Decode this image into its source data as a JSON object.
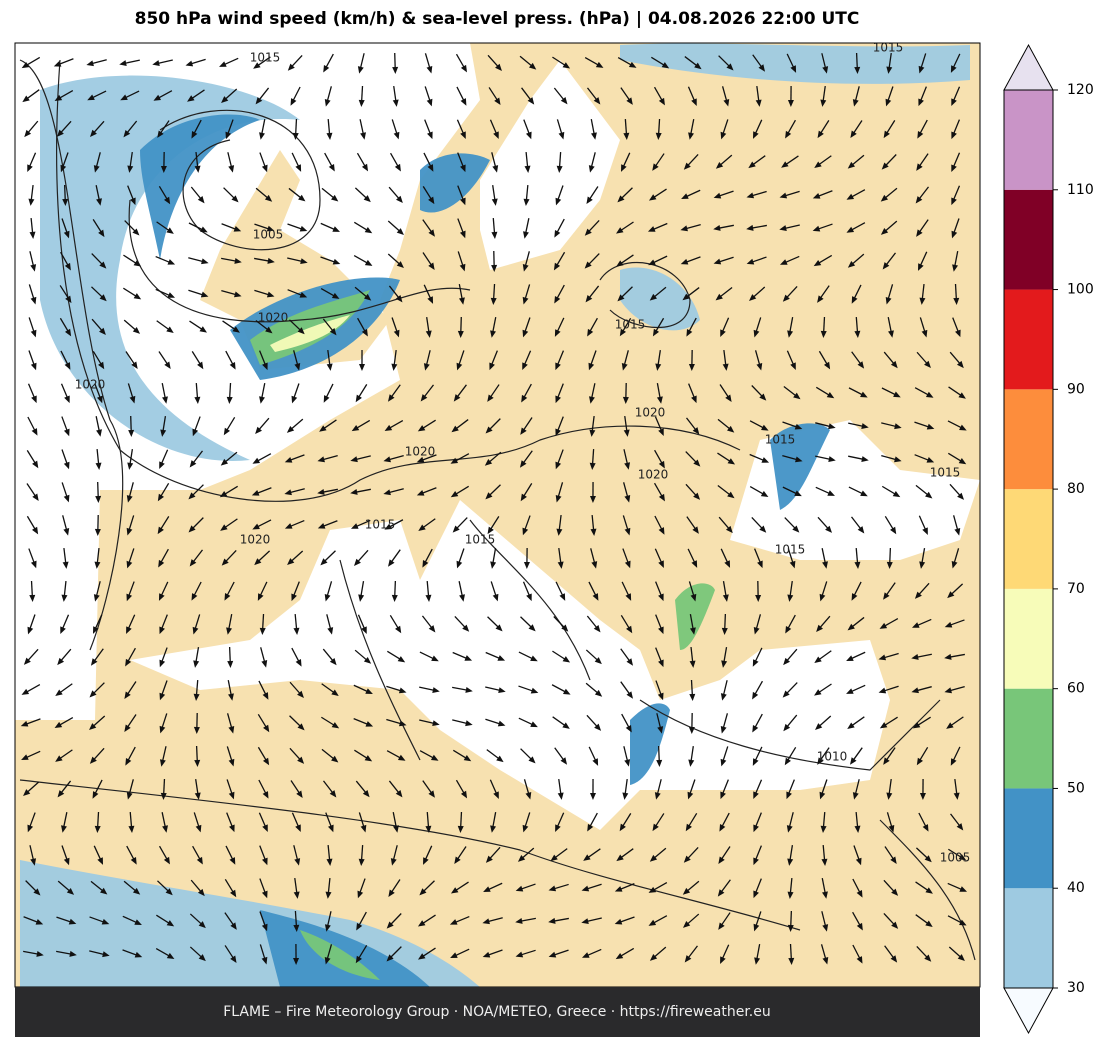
{
  "header": {
    "title": "850 hPa wind speed (km/h) & sea-level press. (hPa)  |  04.08.2026 22:00 UTC"
  },
  "colorbar": {
    "ticks": [
      30,
      40,
      50,
      60,
      70,
      80,
      90,
      100,
      110,
      120
    ],
    "colors": [
      "#9ecae1",
      "#4292c6",
      "#78c679",
      "#f7fcb9",
      "#fed976",
      "#fd8d3c",
      "#e31a1c",
      "#800026",
      "#c994c7"
    ],
    "under_color": "#f7fbff",
    "over_color": "#e7e1ef"
  },
  "contour_labels": [
    1015,
    1015,
    1005,
    1020,
    1020,
    1015,
    1020,
    1020,
    1020,
    1015,
    1015,
    1020,
    1015,
    1015,
    1015,
    1010,
    1005
  ],
  "footer": {
    "text": "FLAME – Fire Meteorology Group · NOA/METEO, Greece · https://fireweather.eu"
  }
}
